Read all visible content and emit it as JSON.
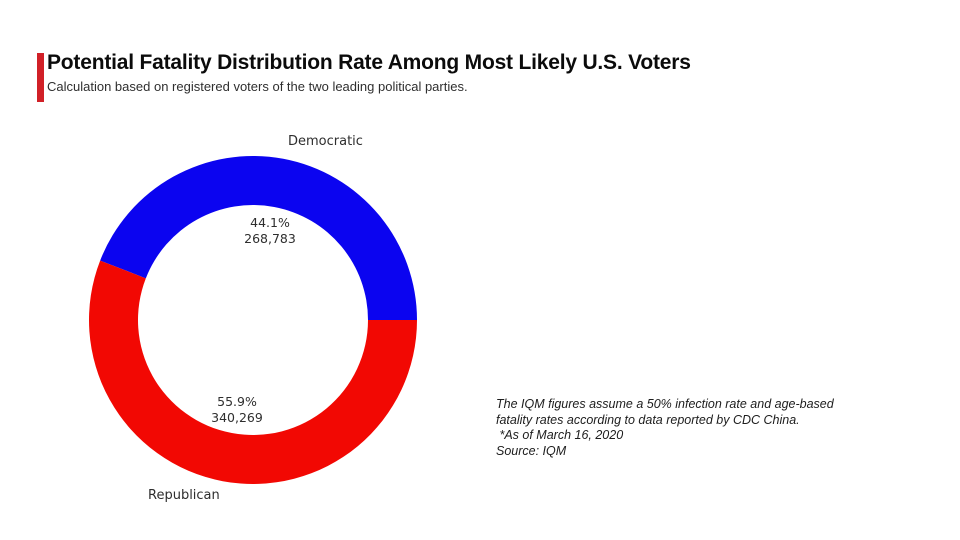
{
  "page": {
    "title": "Potential Fatality Distribution Rate Among Most Likely U.S. Voters",
    "subtitle": "Calculation based on registered voters of the two leading political parties.",
    "accent_color": "#d12027",
    "background_color": "#ffffff"
  },
  "note": {
    "lines": [
      "The IQM figures assume a 50% infection rate and age-based",
      "fatality rates according to data reported by CDC China.",
      " *As of March 16, 2020",
      "Source: IQM"
    ]
  },
  "chart_data": {
    "type": "pie",
    "variant": "donut",
    "title": "",
    "legend": "none",
    "start_angle_deg": 0,
    "direction": "counterclockwise",
    "inner_radius_ratio": 0.7,
    "slices": [
      {
        "label": "Democratic",
        "percent": 44.1,
        "value": 268783,
        "percent_label": "44.1%",
        "value_label": "268,783",
        "color": "#0b04f0"
      },
      {
        "label": "Republican",
        "percent": 55.9,
        "value": 340269,
        "percent_label": "55.9%",
        "value_label": "340,269",
        "color": "#f20803"
      }
    ]
  }
}
